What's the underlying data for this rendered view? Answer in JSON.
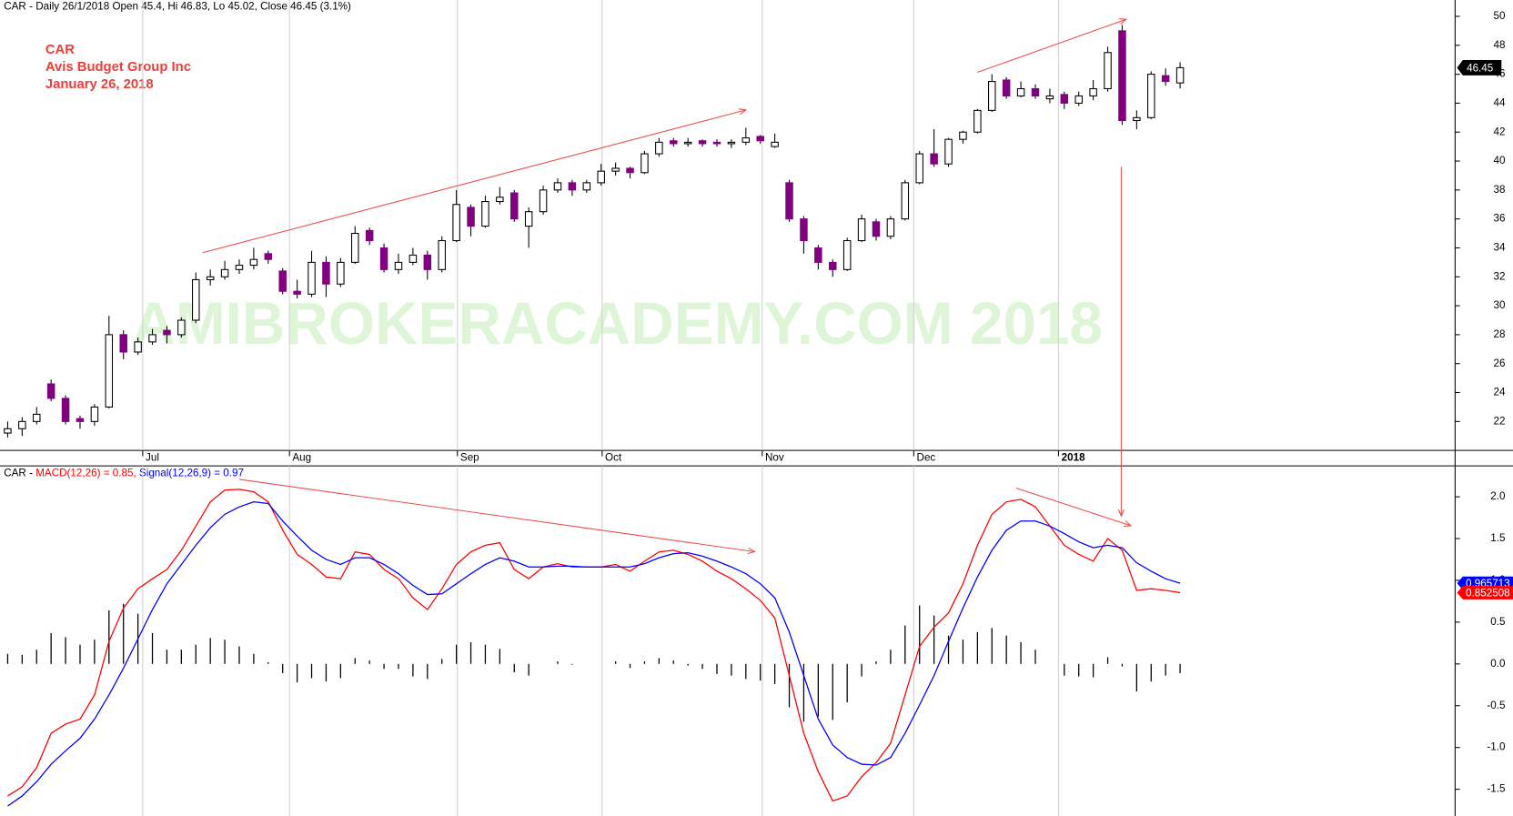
{
  "chart_data": [
    {
      "type": "candlestick",
      "title": "CAR - Daily 26/1/2018 Open 45.4, Hi 46.83, Lo 45.02, Close 46.45 (3.1%)",
      "annotations": [
        "CAR",
        "Avis Budget Group Inc",
        "January 26, 2018"
      ],
      "watermark": "AMIBROKERACADEMY.COM  2018",
      "up_color": "#ffffff",
      "down_color": "#800080",
      "xlim": [
        -0.53,
        100
      ],
      "xticks": [
        {
          "value": 9.33,
          "label": "Jul"
        },
        {
          "value": 19.47,
          "label": "Aug"
        },
        {
          "value": 31.07,
          "label": "Sep"
        },
        {
          "value": 41.07,
          "label": "Oct"
        },
        {
          "value": 52.13,
          "label": "Nov"
        },
        {
          "value": 62.6,
          "label": "Dec"
        },
        {
          "value": 72.6,
          "label": "2018"
        }
      ],
      "ylim": [
        20,
        51.13
      ],
      "yticks": [
        22,
        24,
        26,
        28,
        30,
        32,
        34,
        36,
        38,
        40,
        42,
        44,
        46,
        48,
        50
      ],
      "open": [
        21.2,
        21.5,
        22,
        24.6,
        23.6,
        22.2,
        22,
        23,
        28,
        26.8,
        27.5,
        28.3,
        28,
        29,
        31.8,
        32,
        32.5,
        32.8,
        33.6,
        32.4,
        31,
        30.8,
        33,
        31.5,
        33,
        35.2,
        34,
        32.5,
        33,
        33.5,
        32.5,
        34.5,
        36.8,
        35.5,
        37.2,
        37.8,
        35.5,
        36.5,
        38,
        38.5,
        38,
        38.5,
        39.3,
        39.5,
        39.2,
        40.5,
        41.4,
        41.2,
        41.4,
        41.3,
        41.2,
        41.3,
        41.7,
        41,
        38.5,
        36,
        34,
        33,
        32.5,
        34.5,
        35.8,
        34.8,
        36,
        38.5,
        40.5,
        39.8,
        41.5,
        42,
        43.5,
        45.6,
        44.5,
        45,
        44.3,
        44.6,
        44,
        44.5,
        45,
        49,
        42.8,
        43,
        45.9,
        45.4
      ],
      "high": [
        22,
        22.3,
        23,
        24.9,
        23.8,
        22.4,
        23.2,
        29.3,
        28.3,
        27.8,
        28.4,
        28.6,
        29.2,
        32.3,
        32.5,
        33.1,
        33.2,
        34,
        33.8,
        32.6,
        31.8,
        33.8,
        33.4,
        33.3,
        35.5,
        35.4,
        34.3,
        33.6,
        34,
        33.8,
        34.8,
        38,
        37,
        37.6,
        38.2,
        38,
        36.8,
        38.3,
        38.8,
        38.7,
        38.7,
        39.8,
        39.9,
        39.6,
        40.7,
        41.6,
        41.6,
        41.6,
        41.5,
        41.5,
        41.5,
        42.3,
        41.8,
        41.9,
        38.7,
        36.2,
        34.2,
        33.2,
        34.7,
        36.3,
        36,
        36.2,
        38.7,
        40.7,
        42.2,
        41.6,
        42.1,
        43.6,
        46,
        45.8,
        45.5,
        45.3,
        45,
        44.8,
        44.8,
        45.6,
        47.9,
        49.4,
        43.5,
        46.2,
        46.4,
        46.83
      ],
      "low": [
        20.9,
        21,
        21.8,
        23.4,
        21.8,
        21.5,
        21.7,
        22.9,
        26.3,
        26.6,
        27.3,
        27.4,
        27.8,
        28.8,
        31.4,
        31.8,
        32.2,
        32.5,
        32.9,
        30.8,
        30.5,
        30.6,
        30.6,
        31.3,
        32.9,
        34.2,
        32.3,
        32.2,
        32.8,
        31.8,
        32.3,
        34.4,
        34.8,
        35.4,
        37,
        35.8,
        34,
        36.3,
        37.8,
        37.6,
        37.8,
        38.3,
        39,
        38.8,
        39.1,
        40.3,
        41,
        41,
        41,
        41,
        40.9,
        41.1,
        41.2,
        40.9,
        35.8,
        33.6,
        32.5,
        32,
        32.4,
        34.4,
        34.5,
        34.6,
        35.9,
        38.4,
        39.6,
        39.6,
        41.2,
        41.9,
        43.4,
        44.3,
        44.4,
        44.3,
        44,
        43.6,
        43.8,
        44.2,
        44.8,
        42.5,
        42.2,
        42.9,
        45.2,
        45.02
      ],
      "close": [
        21.5,
        22,
        22.5,
        23.6,
        22,
        22,
        23,
        28,
        26.8,
        27.5,
        28,
        28,
        29,
        31.8,
        32,
        32.5,
        32.8,
        33.2,
        33.2,
        31,
        30.8,
        33,
        31.5,
        33,
        35,
        34.5,
        32.5,
        33,
        33.5,
        32.5,
        34.5,
        37,
        35.5,
        37.2,
        37.5,
        36,
        36.5,
        38,
        38.5,
        38,
        38.5,
        39.3,
        39.5,
        39.2,
        40.5,
        41.3,
        41.2,
        41.3,
        41.2,
        41.2,
        41.3,
        41.6,
        41.4,
        41.3,
        36,
        34.5,
        33,
        32.5,
        34.5,
        36,
        34.8,
        36,
        38.5,
        40.5,
        39.8,
        41.5,
        42,
        43.5,
        45.5,
        44.5,
        45,
        44.5,
        44.5,
        44,
        44.5,
        45,
        47.5,
        42.8,
        43,
        46,
        45.5,
        46.45
      ]
    },
    {
      "type": "macd",
      "title": "CAR -",
      "ylim": [
        -1.82,
        2.37
      ],
      "yticks": [
        -1.5,
        {
          "value": -1,
          "label": "-1.0"
        },
        -0.5,
        {
          "value": 0,
          "label": "0.0"
        },
        0.5,
        {
          "value": 1,
          "label": "1.0"
        },
        1.5,
        {
          "value": 2,
          "label": "2.0"
        }
      ],
      "series": [
        {
          "name": "MACD(12,26) = 0.85,",
          "color": "#ff0000",
          "values": [
            -1.58,
            -1.47,
            -1.24,
            -0.83,
            -0.72,
            -0.66,
            -0.37,
            0.27,
            0.67,
            0.9,
            1.02,
            1.13,
            1.36,
            1.65,
            1.94,
            2.08,
            2.09,
            2.06,
            1.94,
            1.6,
            1.31,
            1.19,
            1.04,
            1.02,
            1.34,
            1.31,
            1.13,
            1.02,
            0.79,
            0.65,
            0.9,
            1.19,
            1.34,
            1.42,
            1.45,
            1.13,
            1.02,
            1.16,
            1.2,
            1.16,
            1.16,
            1.16,
            1.19,
            1.11,
            1.23,
            1.34,
            1.36,
            1.31,
            1.23,
            1.11,
            1.02,
            0.9,
            0.76,
            0.55,
            -0.14,
            -0.83,
            -1.29,
            -1.64,
            -1.58,
            -1.35,
            -1.18,
            -0.95,
            -0.37,
            0.21,
            0.44,
            0.61,
            0.96,
            1.42,
            1.79,
            1.94,
            1.97,
            1.88,
            1.65,
            1.42,
            1.31,
            1.23,
            1.5,
            1.36,
            0.88,
            0.9,
            0.88,
            0.852508
          ]
        },
        {
          "name": "Signal(12,26,9) = 0.97",
          "color": "#0000ff",
          "values": [
            -1.7,
            -1.58,
            -1.41,
            -1.2,
            -1.04,
            -0.89,
            -0.66,
            -0.37,
            -0.05,
            0.3,
            0.65,
            0.96,
            1.19,
            1.42,
            1.63,
            1.79,
            1.88,
            1.94,
            1.92,
            1.71,
            1.53,
            1.36,
            1.25,
            1.19,
            1.27,
            1.27,
            1.19,
            1.08,
            0.94,
            0.83,
            0.84,
            0.96,
            1.08,
            1.19,
            1.27,
            1.23,
            1.16,
            1.16,
            1.17,
            1.17,
            1.16,
            1.16,
            1.16,
            1.16,
            1.2,
            1.27,
            1.32,
            1.33,
            1.29,
            1.23,
            1.16,
            1.08,
            0.96,
            0.79,
            0.38,
            -0.14,
            -0.66,
            -0.97,
            -1.12,
            -1.2,
            -1.21,
            -1.12,
            -0.83,
            -0.49,
            -0.14,
            0.27,
            0.67,
            1.04,
            1.36,
            1.6,
            1.71,
            1.71,
            1.65,
            1.56,
            1.46,
            1.39,
            1.42,
            1.39,
            1.21,
            1.11,
            1.02,
            0.965713
          ]
        }
      ],
      "histogram": {
        "color": "#000000",
        "values": [
          0.12,
          0.11,
          0.17,
          0.37,
          0.32,
          0.23,
          0.29,
          0.64,
          0.72,
          0.6,
          0.37,
          0.17,
          0.17,
          0.23,
          0.31,
          0.29,
          0.21,
          0.12,
          0.02,
          -0.11,
          -0.22,
          -0.17,
          -0.21,
          -0.17,
          0.07,
          0.04,
          -0.06,
          -0.06,
          -0.15,
          -0.18,
          0.06,
          0.23,
          0.26,
          0.23,
          0.18,
          -0.1,
          -0.14,
          0,
          0.03,
          -0.01,
          0,
          0,
          0.03,
          -0.05,
          0.03,
          0.07,
          0.04,
          -0.02,
          -0.06,
          -0.12,
          -0.14,
          -0.18,
          -0.2,
          -0.24,
          -0.52,
          -0.69,
          -0.63,
          -0.67,
          -0.46,
          -0.15,
          0.03,
          0.17,
          0.46,
          0.7,
          0.58,
          0.34,
          0.29,
          0.38,
          0.43,
          0.34,
          0.26,
          0.17,
          0,
          -0.14,
          -0.15,
          -0.16,
          0.08,
          -0.03,
          -0.33,
          -0.21,
          -0.14,
          -0.11
        ]
      }
    }
  ]
}
